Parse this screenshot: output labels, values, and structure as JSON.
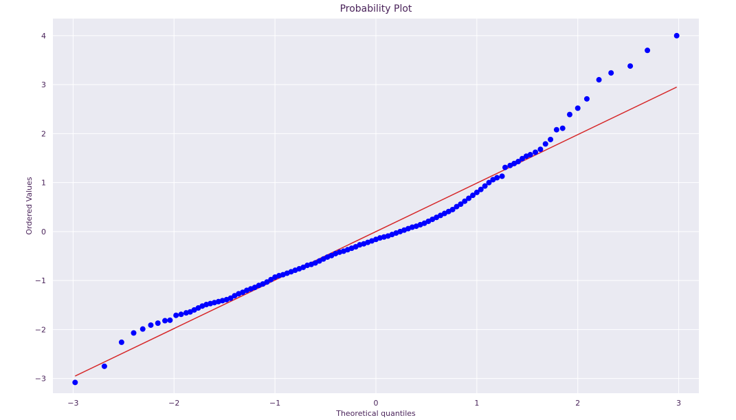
{
  "chart_data": {
    "type": "scatter",
    "title": "Probability Plot",
    "xlabel": "Theoretical quantiles",
    "ylabel": "Ordered Values",
    "xlim": [
      -3.2,
      3.2
    ],
    "ylim": [
      -3.3,
      4.35
    ],
    "xticks": [
      -3,
      -2,
      -1,
      0,
      1,
      2,
      3
    ],
    "yticks": [
      -3,
      -2,
      -1,
      0,
      1,
      2,
      3,
      4
    ],
    "xtick_labels": [
      "−3",
      "−2",
      "−1",
      "0",
      "1",
      "2",
      "3"
    ],
    "ytick_labels": [
      "−3",
      "−2",
      "−1",
      "0",
      "1",
      "2",
      "3",
      "4"
    ],
    "grid": true,
    "background_color": "#eaeaf2",
    "series": [
      {
        "type": "scatter",
        "color": "#0000ff",
        "points": [
          [
            -2.98,
            -3.08
          ],
          [
            -2.69,
            -2.75
          ],
          [
            -2.52,
            -2.26
          ],
          [
            -2.4,
            -2.07
          ],
          [
            -2.31,
            -1.99
          ],
          [
            -2.23,
            -1.91
          ],
          [
            -2.16,
            -1.87
          ],
          [
            -2.09,
            -1.82
          ],
          [
            -2.04,
            -1.81
          ],
          [
            -1.98,
            -1.71
          ],
          [
            -1.93,
            -1.69
          ],
          [
            -1.88,
            -1.66
          ],
          [
            -1.84,
            -1.64
          ],
          [
            -1.8,
            -1.6
          ],
          [
            -1.76,
            -1.56
          ],
          [
            -1.72,
            -1.52
          ],
          [
            -1.68,
            -1.49
          ],
          [
            -1.64,
            -1.47
          ],
          [
            -1.6,
            -1.45
          ],
          [
            -1.56,
            -1.43
          ],
          [
            -1.52,
            -1.41
          ],
          [
            -1.48,
            -1.39
          ],
          [
            -1.44,
            -1.36
          ],
          [
            -1.4,
            -1.31
          ],
          [
            -1.36,
            -1.27
          ],
          [
            -1.32,
            -1.24
          ],
          [
            -1.28,
            -1.2
          ],
          [
            -1.24,
            -1.17
          ],
          [
            -1.2,
            -1.14
          ],
          [
            -1.16,
            -1.1
          ],
          [
            -1.12,
            -1.07
          ],
          [
            -1.08,
            -1.03
          ],
          [
            -1.04,
            -0.98
          ],
          [
            -1.0,
            -0.93
          ],
          [
            -0.96,
            -0.9
          ],
          [
            -0.92,
            -0.88
          ],
          [
            -0.88,
            -0.85
          ],
          [
            -0.84,
            -0.82
          ],
          [
            -0.8,
            -0.79
          ],
          [
            -0.76,
            -0.76
          ],
          [
            -0.72,
            -0.73
          ],
          [
            -0.68,
            -0.69
          ],
          [
            -0.64,
            -0.67
          ],
          [
            -0.6,
            -0.64
          ],
          [
            -0.56,
            -0.6
          ],
          [
            -0.52,
            -0.56
          ],
          [
            -0.48,
            -0.52
          ],
          [
            -0.44,
            -0.49
          ],
          [
            -0.4,
            -0.45
          ],
          [
            -0.36,
            -0.42
          ],
          [
            -0.32,
            -0.4
          ],
          [
            -0.28,
            -0.37
          ],
          [
            -0.24,
            -0.34
          ],
          [
            -0.2,
            -0.31
          ],
          [
            -0.16,
            -0.27
          ],
          [
            -0.12,
            -0.25
          ],
          [
            -0.08,
            -0.22
          ],
          [
            -0.04,
            -0.19
          ],
          [
            0.0,
            -0.16
          ],
          [
            0.04,
            -0.13
          ],
          [
            0.08,
            -0.11
          ],
          [
            0.12,
            -0.09
          ],
          [
            0.16,
            -0.06
          ],
          [
            0.2,
            -0.03
          ],
          [
            0.24,
            0.0
          ],
          [
            0.28,
            0.03
          ],
          [
            0.32,
            0.06
          ],
          [
            0.36,
            0.09
          ],
          [
            0.4,
            0.11
          ],
          [
            0.44,
            0.14
          ],
          [
            0.48,
            0.17
          ],
          [
            0.52,
            0.21
          ],
          [
            0.56,
            0.25
          ],
          [
            0.6,
            0.29
          ],
          [
            0.64,
            0.33
          ],
          [
            0.68,
            0.37
          ],
          [
            0.72,
            0.41
          ],
          [
            0.76,
            0.45
          ],
          [
            0.8,
            0.51
          ],
          [
            0.84,
            0.56
          ],
          [
            0.88,
            0.62
          ],
          [
            0.92,
            0.68
          ],
          [
            0.96,
            0.74
          ],
          [
            1.0,
            0.8
          ],
          [
            1.04,
            0.86
          ],
          [
            1.08,
            0.93
          ],
          [
            1.12,
            1.0
          ],
          [
            1.16,
            1.06
          ],
          [
            1.2,
            1.1
          ],
          [
            1.25,
            1.13
          ],
          [
            1.28,
            1.31
          ],
          [
            1.33,
            1.35
          ],
          [
            1.37,
            1.39
          ],
          [
            1.41,
            1.43
          ],
          [
            1.45,
            1.49
          ],
          [
            1.49,
            1.54
          ],
          [
            1.53,
            1.57
          ],
          [
            1.58,
            1.62
          ],
          [
            1.63,
            1.68
          ],
          [
            1.68,
            1.79
          ],
          [
            1.73,
            1.88
          ],
          [
            1.79,
            2.08
          ],
          [
            1.85,
            2.11
          ],
          [
            1.92,
            2.39
          ],
          [
            2.0,
            2.52
          ],
          [
            2.09,
            2.71
          ],
          [
            2.21,
            3.1
          ],
          [
            2.33,
            3.24
          ],
          [
            2.52,
            3.38
          ],
          [
            2.69,
            3.7
          ],
          [
            2.98,
            4.0
          ]
        ]
      },
      {
        "type": "line",
        "color": "#d62728",
        "points": [
          [
            -2.98,
            -2.95
          ],
          [
            2.98,
            2.95
          ]
        ]
      }
    ]
  }
}
